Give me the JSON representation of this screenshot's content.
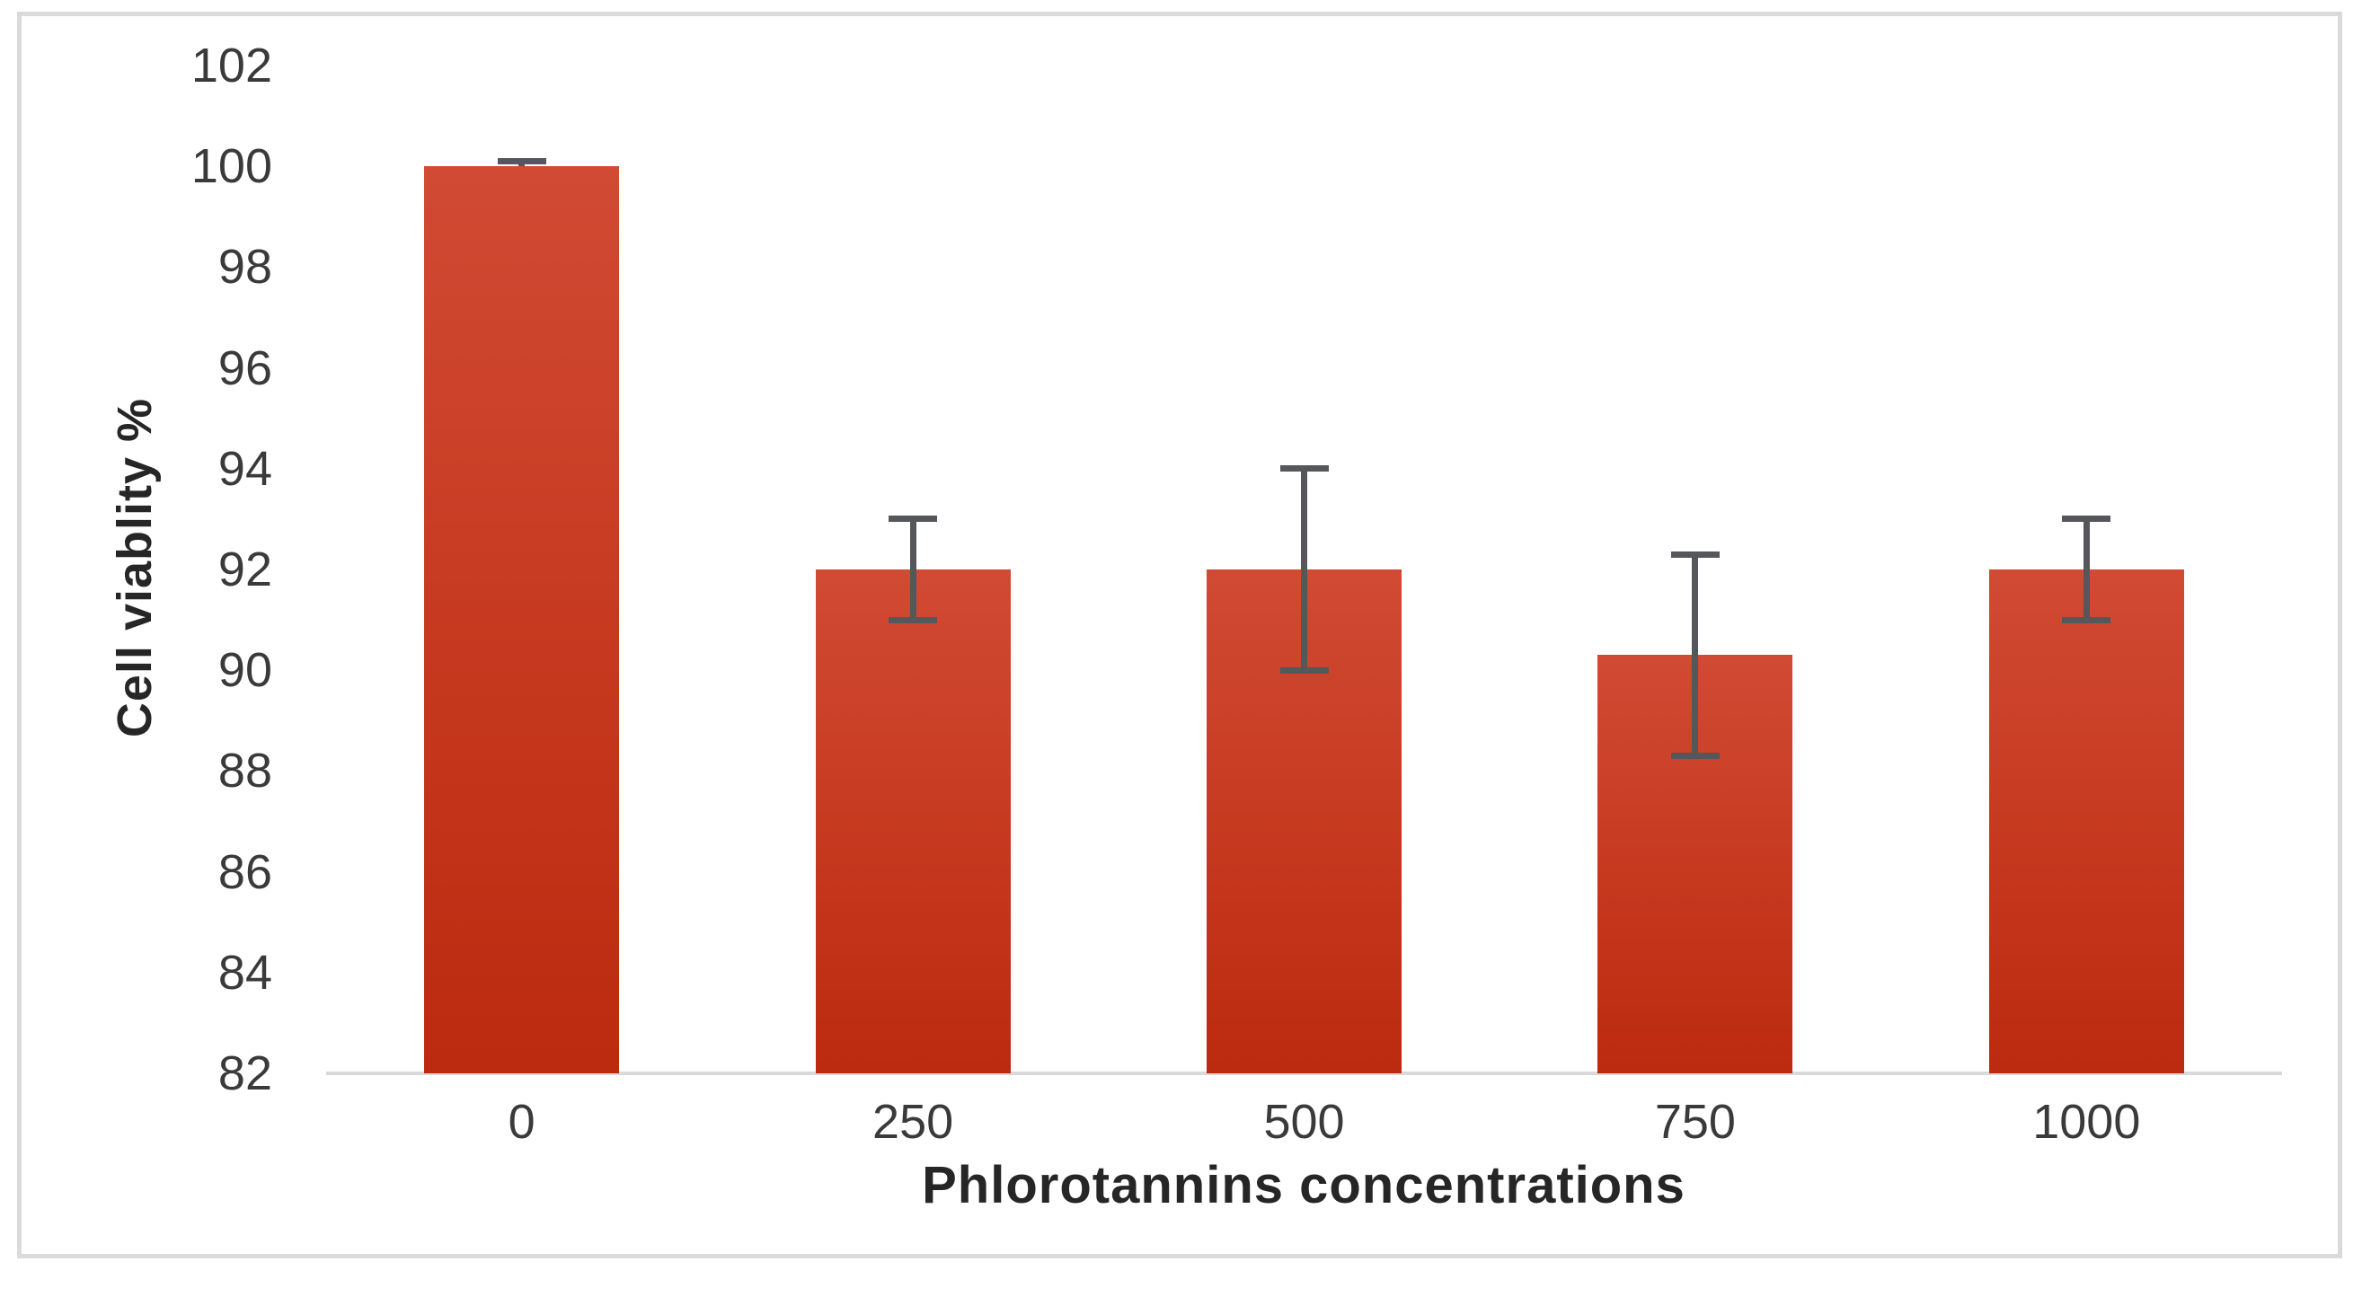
{
  "chart_data": {
    "type": "bar",
    "categories": [
      "0",
      "250",
      "500",
      "750",
      "1000"
    ],
    "values": [
      100,
      92,
      92,
      90.3,
      92
    ],
    "error_plus": [
      0.1,
      1,
      2,
      2,
      1
    ],
    "error_minus": [
      0,
      1,
      2,
      2,
      1
    ],
    "title": "",
    "xlabel": "Phlorotannins concentrations",
    "ylabel": "Cell viablity %",
    "ylim": [
      82,
      102
    ],
    "ytick_step": 2,
    "yticks": [
      102,
      100,
      98,
      96,
      94,
      92,
      90,
      88,
      86,
      84,
      82
    ],
    "grid": "off",
    "legend": "none",
    "colors": {
      "bar_top": "#d14a33",
      "bar_bottom": "#bc2a0f",
      "error_bar": "#56575b",
      "axis_line": "#d9d9d9",
      "tick_text": "#3a3a3a",
      "title_text": "#262626",
      "frame_border": "#dadada",
      "background": "#ffffff"
    }
  }
}
